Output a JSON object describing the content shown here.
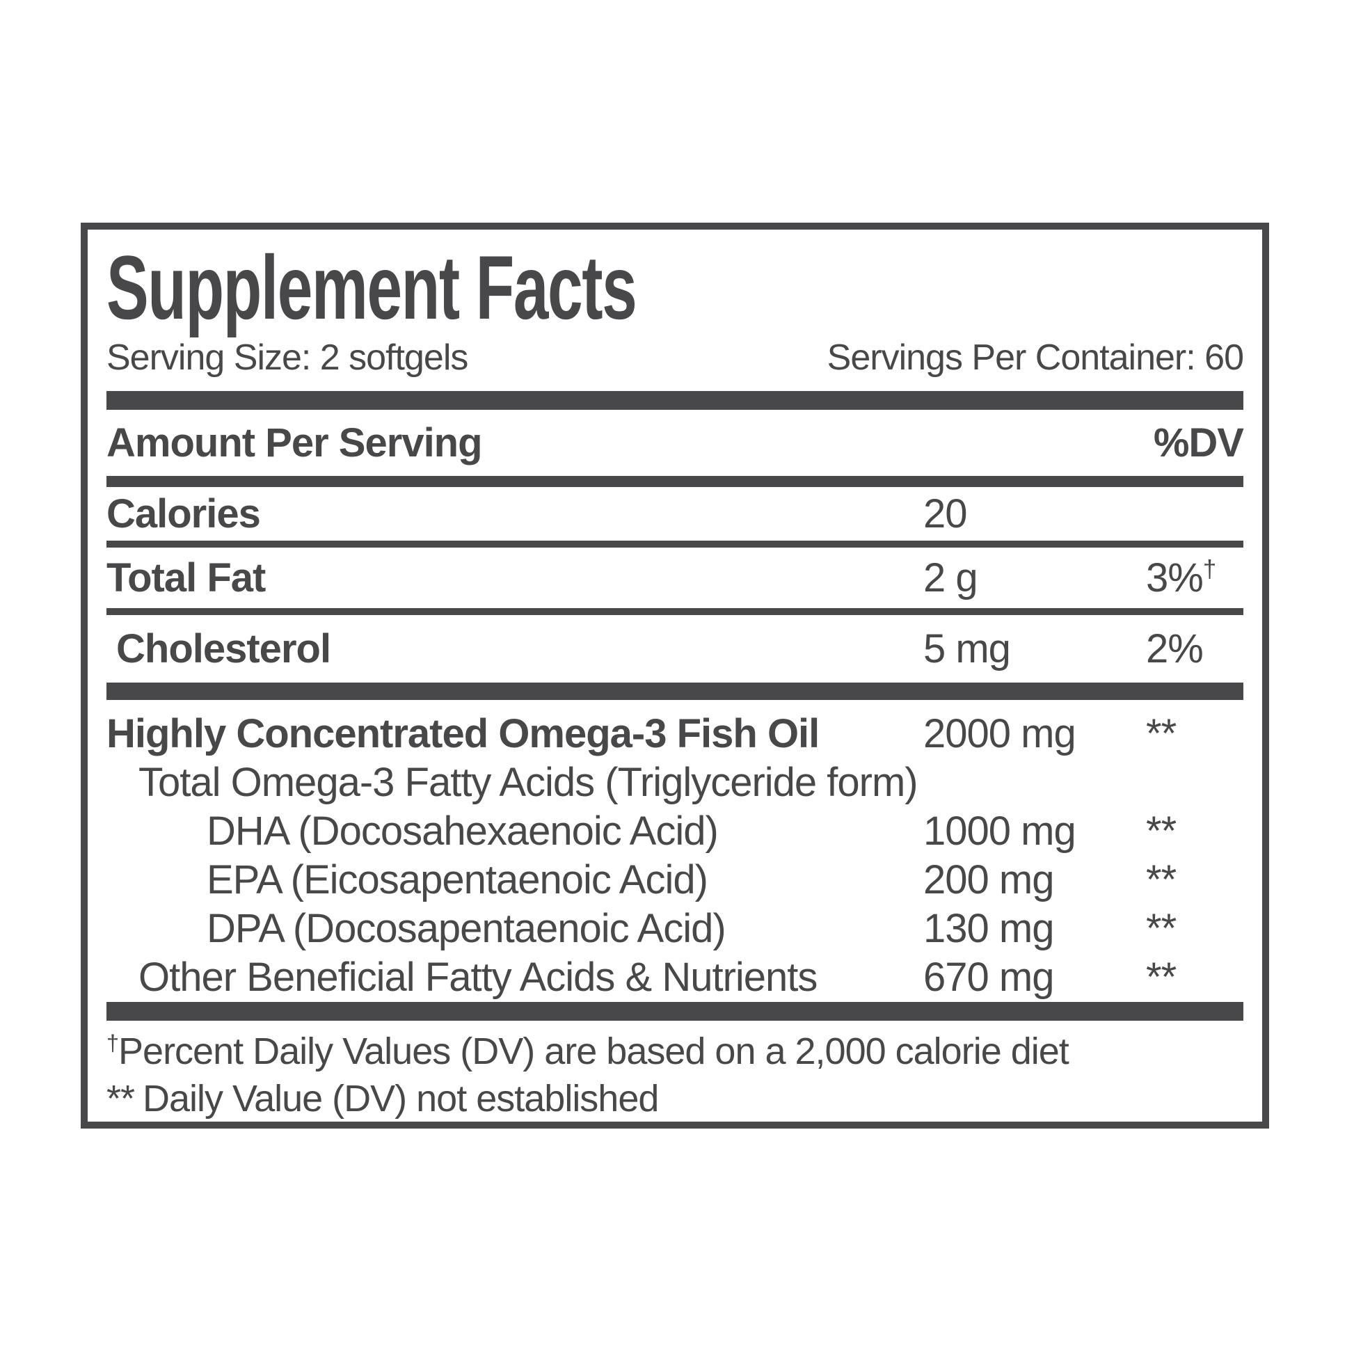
{
  "label": {
    "title": "Supplement Facts",
    "serving_size": "Serving Size: 2 softgels",
    "servings_per_container": "Servings Per Container: 60",
    "headers": {
      "amount_per_serving": "Amount Per Serving",
      "dv": "%DV"
    },
    "rows": [
      {
        "name": "Calories",
        "amount": "20",
        "dv": ""
      },
      {
        "name": "Total Fat",
        "amount": "2 g",
        "dv": "3%",
        "dv_sup": "†"
      },
      {
        "name": "Cholesterol",
        "amount": "5 mg",
        "dv": "2%"
      },
      {
        "name": "Highly Concentrated Omega-3 Fish Oil",
        "amount": "2000 mg",
        "dv": "**"
      },
      {
        "name": "Total Omega-3 Fatty Acids (Triglyceride form)",
        "amount": "",
        "dv": ""
      },
      {
        "name": "DHA (Docosahexaenoic Acid)",
        "amount": "1000 mg",
        "dv": "**"
      },
      {
        "name": "EPA (Eicosapentaenoic Acid)",
        "amount": "200 mg",
        "dv": "**"
      },
      {
        "name": "DPA (Docosapentaenoic Acid)",
        "amount": "130 mg",
        "dv": "**"
      },
      {
        "name": "Other Beneficial Fatty Acids & Nutrients",
        "amount": "670 mg",
        "dv": "**"
      }
    ],
    "footnotes": {
      "dagger_symbol": "†",
      "dagger_note": "Percent Daily Values (DV) are based on a 2,000 calorie diet",
      "asterisk_symbol": "**",
      "asterisk_note": "Daily Value (DV) not established"
    },
    "colors": {
      "ink": "#48484a",
      "background": "#ffffff"
    }
  }
}
